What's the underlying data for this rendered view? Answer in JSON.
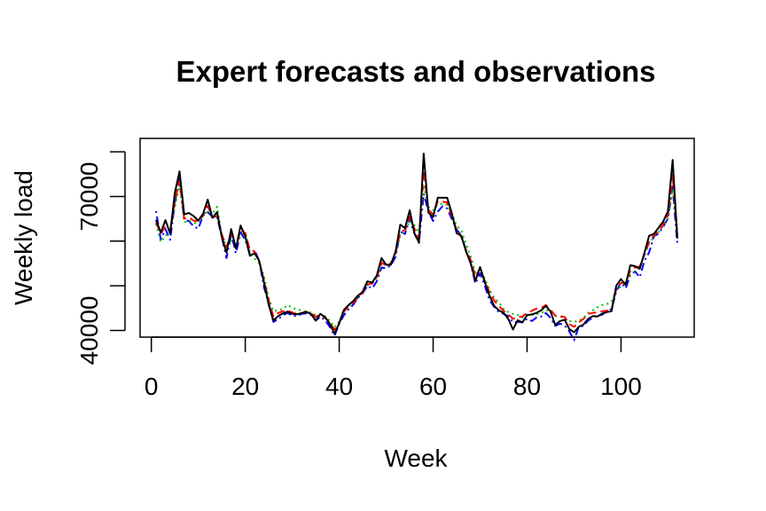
{
  "chart_data": {
    "type": "line",
    "title": "Expert forecasts and observations",
    "xlabel": "Week",
    "ylabel": "Weekly load",
    "xlim": [
      1,
      112
    ],
    "ylim": [
      38500,
      83000
    ],
    "x_ticks": [
      0,
      20,
      40,
      60,
      80,
      100
    ],
    "y_ticks": [
      40000,
      50000,
      60000,
      70000,
      80000
    ],
    "y_tick_labels": [
      "40000",
      "",
      "",
      "70000",
      ""
    ],
    "grid": false,
    "legend": "none",
    "series": [
      {
        "color": "#000000",
        "line_style": "solid",
        "values": [
          64800,
          61900,
          64700,
          61700,
          70800,
          75600,
          66000,
          66300,
          65600,
          64600,
          66100,
          69300,
          65200,
          66500,
          60900,
          57400,
          62700,
          58300,
          63500,
          61100,
          56700,
          57300,
          55500,
          50700,
          45700,
          42200,
          43200,
          43800,
          44200,
          43700,
          43600,
          43900,
          44100,
          43700,
          42200,
          43700,
          43000,
          41500,
          39300,
          41600,
          44600,
          45700,
          46600,
          47800,
          48700,
          51000,
          50700,
          52300,
          56200,
          54700,
          54700,
          57700,
          63700,
          62900,
          66900,
          61800,
          59700,
          79600,
          66400,
          65400,
          69700,
          69700,
          69700,
          66200,
          61800,
          61200,
          57700,
          55100,
          51100,
          54200,
          50800,
          47800,
          45500,
          44500,
          43900,
          42600,
          40200,
          42300,
          41800,
          43400,
          43600,
          43900,
          44500,
          45500,
          44200,
          41200,
          42100,
          42400,
          40300,
          39600,
          40800,
          41300,
          42600,
          43200,
          43100,
          43800,
          44100,
          44300,
          50000,
          51500,
          50200,
          54600,
          54400,
          53800,
          57400,
          61200,
          61600,
          63000,
          64400,
          66700,
          78200,
          60600
        ]
      },
      {
        "color": "#ff0000",
        "line_style": "dashed",
        "values": [
          64200,
          61700,
          63300,
          62100,
          69000,
          73500,
          65000,
          65300,
          64600,
          64400,
          65800,
          67900,
          65300,
          65600,
          61500,
          58700,
          61700,
          58600,
          62400,
          61800,
          58000,
          57700,
          55300,
          51200,
          46700,
          43100,
          43900,
          44300,
          44500,
          44000,
          43700,
          43900,
          44200,
          43900,
          43000,
          43600,
          42800,
          41600,
          40200,
          41700,
          44200,
          45300,
          46200,
          47400,
          48500,
          50300,
          50500,
          51900,
          55200,
          54500,
          55000,
          57300,
          62000,
          62500,
          65500,
          62800,
          60600,
          75800,
          67000,
          66000,
          68900,
          68800,
          68700,
          65500,
          62600,
          60900,
          58000,
          55800,
          52000,
          53800,
          51100,
          48600,
          46700,
          45500,
          44400,
          43600,
          42600,
          43000,
          43100,
          43900,
          44400,
          44900,
          45000,
          45700,
          44600,
          43300,
          43200,
          43000,
          41400,
          40800,
          41800,
          42600,
          43700,
          43900,
          44100,
          44300,
          44400,
          44700,
          49300,
          50600,
          50700,
          53400,
          54100,
          54300,
          57000,
          59800,
          61300,
          62200,
          63700,
          65900,
          74800,
          61100
        ]
      },
      {
        "color": "#00c000",
        "line_style": "dotted",
        "values": [
          63800,
          59800,
          61100,
          62300,
          67700,
          72500,
          64200,
          64600,
          64000,
          64100,
          65600,
          66700,
          66100,
          67700,
          61000,
          59000,
          60100,
          58900,
          61200,
          62000,
          57400,
          56100,
          55000,
          52100,
          47200,
          44300,
          44500,
          44800,
          45700,
          45100,
          44700,
          44500,
          44200,
          44000,
          43400,
          43600,
          43100,
          42200,
          40700,
          42000,
          44700,
          45500,
          46200,
          47300,
          48900,
          50100,
          50600,
          51800,
          54900,
          54700,
          55300,
          57200,
          61300,
          62200,
          64600,
          63600,
          61800,
          72500,
          67600,
          66900,
          68200,
          68400,
          68200,
          66200,
          63500,
          62400,
          59400,
          56600,
          53000,
          53800,
          51600,
          49100,
          47200,
          46300,
          44800,
          44100,
          43700,
          43500,
          42900,
          43500,
          43400,
          43600,
          43800,
          44600,
          44100,
          43200,
          43100,
          42900,
          42100,
          42000,
          42100,
          42800,
          43900,
          44500,
          45200,
          45700,
          45900,
          46500,
          48900,
          49800,
          50600,
          52400,
          53400,
          54400,
          56800,
          59500,
          61000,
          62000,
          63400,
          64900,
          71600,
          62300
        ]
      },
      {
        "color": "#0000ff",
        "line_style": "dashdot",
        "values": [
          66700,
          60400,
          62700,
          60300,
          68500,
          73900,
          64700,
          64500,
          63300,
          62800,
          65700,
          66500,
          65500,
          65300,
          60900,
          56200,
          61600,
          57300,
          61900,
          60300,
          57100,
          58000,
          55500,
          49600,
          46200,
          41900,
          42500,
          43400,
          43900,
          43300,
          43200,
          43700,
          43800,
          43400,
          42200,
          43100,
          42300,
          40800,
          38800,
          41500,
          43400,
          44700,
          45800,
          47300,
          48300,
          50000,
          49400,
          51000,
          54100,
          53900,
          54600,
          56500,
          62100,
          61600,
          65000,
          61700,
          59600,
          70600,
          66700,
          64500,
          66600,
          67800,
          67300,
          64900,
          62600,
          61300,
          58000,
          54900,
          50500,
          52800,
          50000,
          46800,
          45300,
          44100,
          43700,
          43200,
          41800,
          41900,
          41800,
          42600,
          42100,
          42900,
          43100,
          43900,
          42800,
          41000,
          41500,
          41100,
          39800,
          37800,
          40800,
          41000,
          42200,
          42900,
          43300,
          43500,
          44300,
          44800,
          48700,
          50800,
          49400,
          52400,
          53200,
          51900,
          55600,
          57500,
          61000,
          61700,
          63200,
          65100,
          72200,
          59200
        ]
      }
    ]
  }
}
